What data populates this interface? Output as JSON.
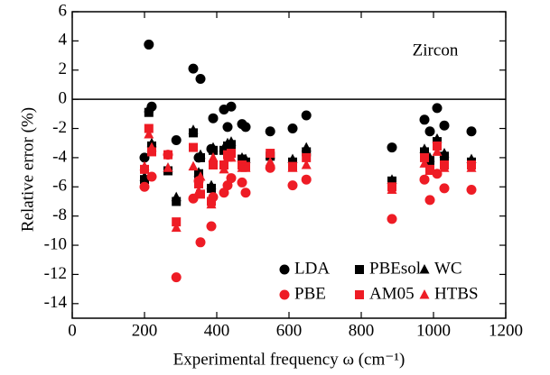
{
  "chart_data": {
    "type": "scatter",
    "annotation": "Zircon",
    "xlabel": "Experimental frequency ω (cm⁻¹)",
    "ylabel": "Relative error (%)",
    "x": [
      200,
      212,
      220,
      265,
      288,
      335,
      350,
      355,
      385,
      390,
      420,
      430,
      440,
      470,
      480,
      548,
      610,
      648,
      885,
      975,
      990,
      1010,
      1030,
      1105
    ],
    "xlim": [
      0,
      1200
    ],
    "xticks": [
      0,
      200,
      400,
      600,
      800,
      1000,
      1200
    ],
    "ylim": [
      -15,
      6
    ],
    "yticks": [
      -14,
      -12,
      -10,
      -8,
      -6,
      -4,
      -2,
      0,
      2,
      4,
      6
    ],
    "zero_line": true,
    "legend": "lower right",
    "series": [
      {
        "name": "LDA",
        "color": "#000000",
        "marker": "circle",
        "values": [
          -4.0,
          3.75,
          -0.5,
          null,
          -2.8,
          2.1,
          -4.0,
          1.4,
          -3.4,
          -1.3,
          -0.7,
          -1.9,
          -0.5,
          -1.7,
          -1.9,
          -2.2,
          -2.0,
          -1.1,
          -3.3,
          -1.4,
          -2.2,
          -0.6,
          -1.8,
          -2.2
        ]
      },
      {
        "name": "PBEsol",
        "color": "#000000",
        "marker": "square",
        "values": [
          -5.5,
          -0.9,
          -3.2,
          -4.9,
          -7.0,
          -2.3,
          -5.1,
          -4.0,
          -6.1,
          -3.5,
          -3.5,
          -3.2,
          -3.1,
          -4.1,
          -4.3,
          -3.9,
          -4.3,
          -3.6,
          -5.6,
          -3.6,
          -4.2,
          -2.9,
          -3.9,
          -4.3
        ]
      },
      {
        "name": "WC",
        "color": "#000000",
        "marker": "triangle",
        "values": [
          -5.3,
          -0.6,
          -3.0,
          -4.7,
          -6.7,
          -2.1,
          -5.0,
          -3.8,
          -5.9,
          -3.3,
          -3.3,
          -3.0,
          -2.9,
          -4.0,
          -4.1,
          -3.8,
          -4.1,
          -3.3,
          -5.5,
          -3.4,
          -4.0,
          -2.7,
          -3.7,
          -4.1
        ]
      },
      {
        "name": "PBE",
        "color": "#ee1c25",
        "marker": "circle",
        "values": [
          -6.0,
          null,
          -5.3,
          -3.8,
          -12.2,
          -6.8,
          -5.6,
          -9.8,
          -8.7,
          -6.7,
          -6.4,
          -5.9,
          -5.4,
          -5.7,
          -6.4,
          -4.7,
          -5.9,
          -5.5,
          -8.2,
          -5.5,
          -6.9,
          -5.1,
          -6.1,
          -6.2
        ]
      },
      {
        "name": "AM05",
        "color": "#ee1c25",
        "marker": "square",
        "values": [
          -4.8,
          -2.0,
          -3.6,
          -3.8,
          -8.4,
          -3.3,
          -5.8,
          -6.5,
          -7.0,
          -4.5,
          -4.5,
          -3.8,
          -3.7,
          -4.5,
          -4.6,
          -3.7,
          -4.6,
          -4.0,
          -6.0,
          -4.0,
          -4.8,
          -3.2,
          -4.5,
          -4.5
        ]
      },
      {
        "name": "HTBS",
        "color": "#ee1c25",
        "marker": "triangle",
        "values": [
          -4.6,
          -2.4,
          -3.3,
          -4.7,
          -8.8,
          -4.6,
          -6.3,
          -5.3,
          -7.2,
          -4.0,
          -4.8,
          -4.0,
          -4.0,
          -4.7,
          -4.7,
          -4.3,
          -4.7,
          -4.5,
          -6.2,
          -4.4,
          -4.9,
          -3.6,
          -4.7,
          -4.7
        ]
      }
    ]
  }
}
